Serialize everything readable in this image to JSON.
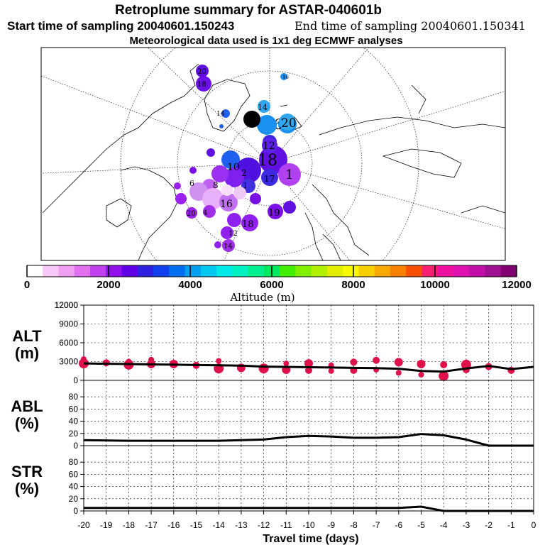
{
  "header": {
    "title": "Retroplume summary for ASTAR-040601b",
    "start_label": "Start time of sampling 20040601.150243",
    "end_label": "End time of sampling 20040601.150341",
    "meteo_label": "Meteorological data used is 1x1 deg ECMWF analyses"
  },
  "map": {
    "description_labels": [
      "20",
      "18",
      "16",
      "14",
      "12",
      "10",
      "8",
      "6",
      "4",
      "2",
      "1"
    ],
    "clusters": [
      {
        "label": "20",
        "color": "#2060f0"
      },
      {
        "label": "16",
        "color": "#1a90f0"
      },
      {
        "label": "14",
        "color": "#2fa8f0"
      },
      {
        "label": "18",
        "color": "#6010e0"
      },
      {
        "label": "12",
        "color": "#5c20e8"
      },
      {
        "label": "17",
        "color": "#3c28e0"
      },
      {
        "label": "1",
        "color": "#b040f0"
      },
      {
        "label": "19",
        "color": "#7b10e8"
      },
      {
        "label": "18",
        "color": "#9020f0"
      },
      {
        "label": "16",
        "color": "#c070f0"
      },
      {
        "label": "20",
        "color": "#9a20f0"
      },
      {
        "label": "14",
        "color": "#a030e8"
      }
    ]
  },
  "colorbar": {
    "label": "Altitude (m)",
    "tick_labels": [
      "0",
      "2000",
      "4000",
      "6000",
      "8000",
      "10000",
      "12000"
    ],
    "colors": [
      "#ffffff",
      "#f8c8f8",
      "#f0a0f0",
      "#e070f0",
      "#c040f0",
      "#9010f0",
      "#6000e8",
      "#3020e0",
      "#1040f0",
      "#0070f0",
      "#00a0f0",
      "#00c8f0",
      "#00e8e8",
      "#00f0c0",
      "#00f090",
      "#00e860",
      "#40f000",
      "#80f000",
      "#b0f000",
      "#e0f000",
      "#f8f800",
      "#f8d000",
      "#f8a800",
      "#f88000",
      "#f85000",
      "#f82070",
      "#f010a0",
      "#e010b0",
      "#c010a8",
      "#a01090",
      "#800070"
    ]
  },
  "chart_data": [
    {
      "type": "line",
      "title": "ALT (m)",
      "ylabel_top": "ALT",
      "ylabel_bottom": "(m)",
      "ylim": [
        0,
        12000
      ],
      "yticks": [
        0,
        3000,
        6000,
        9000,
        12000
      ],
      "x": [
        -20,
        -19,
        -18,
        -17,
        -16,
        -15,
        -14,
        -13,
        -12,
        -11,
        -10,
        -9,
        -8,
        -7,
        -6,
        -5,
        -4,
        -3,
        -2,
        -1,
        0
      ],
      "values": [
        2700,
        2650,
        2600,
        2550,
        2500,
        2450,
        2400,
        2350,
        2200,
        2150,
        2100,
        2050,
        2000,
        1950,
        1850,
        1500,
        1400,
        1900,
        2300,
        1800,
        2150
      ],
      "scatter_color": "#e0104a",
      "scatter": [
        {
          "x": -20,
          "y": 2700,
          "r": 7
        },
        {
          "x": -20,
          "y": 3400,
          "r": 4
        },
        {
          "x": -19,
          "y": 2800,
          "r": 5
        },
        {
          "x": -18,
          "y": 2500,
          "r": 7
        },
        {
          "x": -18,
          "y": 3000,
          "r": 4
        },
        {
          "x": -17,
          "y": 2600,
          "r": 6
        },
        {
          "x": -17,
          "y": 3300,
          "r": 4
        },
        {
          "x": -16,
          "y": 2600,
          "r": 6
        },
        {
          "x": -15,
          "y": 2400,
          "r": 5
        },
        {
          "x": -14,
          "y": 1900,
          "r": 7
        },
        {
          "x": -14,
          "y": 3100,
          "r": 4
        },
        {
          "x": -13,
          "y": 2000,
          "r": 6
        },
        {
          "x": -12,
          "y": 1900,
          "r": 7
        },
        {
          "x": -11,
          "y": 1700,
          "r": 6
        },
        {
          "x": -11,
          "y": 2700,
          "r": 4
        },
        {
          "x": -10,
          "y": 2700,
          "r": 6
        },
        {
          "x": -10,
          "y": 1600,
          "r": 5
        },
        {
          "x": -9,
          "y": 1500,
          "r": 4
        },
        {
          "x": -9,
          "y": 2400,
          "r": 4
        },
        {
          "x": -8,
          "y": 2900,
          "r": 5
        },
        {
          "x": -8,
          "y": 1600,
          "r": 5
        },
        {
          "x": -7,
          "y": 3200,
          "r": 5
        },
        {
          "x": -7,
          "y": 1700,
          "r": 4
        },
        {
          "x": -6,
          "y": 2900,
          "r": 6
        },
        {
          "x": -6,
          "y": 1200,
          "r": 4
        },
        {
          "x": -5,
          "y": 2600,
          "r": 6
        },
        {
          "x": -5,
          "y": 900,
          "r": 4
        },
        {
          "x": -4,
          "y": 700,
          "r": 7
        },
        {
          "x": -4,
          "y": 2500,
          "r": 5
        },
        {
          "x": -3,
          "y": 2500,
          "r": 7
        },
        {
          "x": -3,
          "y": 1700,
          "r": 5
        },
        {
          "x": -2,
          "y": 2200,
          "r": 5
        },
        {
          "x": -1,
          "y": 1600,
          "r": 5
        }
      ]
    },
    {
      "type": "line",
      "title": "ABL (%)",
      "ylabel_top": "ABL",
      "ylabel_bottom": "(%)",
      "ylim": [
        0,
        100
      ],
      "yticks": [
        0,
        20,
        40,
        60,
        80
      ],
      "x": [
        -20,
        -18,
        -16,
        -14,
        -13,
        -12,
        -11,
        -10,
        -9,
        -8,
        -7,
        -6,
        -5,
        -4,
        -3,
        -2,
        -1,
        0
      ],
      "values": [
        9,
        8,
        8,
        8,
        9,
        10,
        14,
        16,
        15,
        13,
        13,
        14,
        19,
        17,
        10,
        0,
        0,
        0
      ]
    },
    {
      "type": "line",
      "title": "STR (%)",
      "ylabel_top": "STR",
      "ylabel_bottom": "(%)",
      "ylim": [
        0,
        100
      ],
      "yticks": [
        0,
        20,
        40,
        60,
        80
      ],
      "x": [
        -20,
        -18,
        -16,
        -14,
        -12,
        -10,
        -8,
        -6,
        -5,
        -4,
        -3,
        -2,
        -1,
        0
      ],
      "values": [
        5,
        5,
        5,
        5,
        5,
        5,
        5,
        5,
        7,
        0,
        0,
        0,
        0,
        0
      ]
    }
  ],
  "xaxis": {
    "label": "Travel time (days)",
    "tick_labels": [
      "-20",
      "-19",
      "-18",
      "-17",
      "-16",
      "-15",
      "-14",
      "-13",
      "-12",
      "-11",
      "-10",
      "-9",
      "-8",
      "-7",
      "-6",
      "-5",
      "-4",
      "-3",
      "-2",
      "-1",
      "0"
    ]
  }
}
